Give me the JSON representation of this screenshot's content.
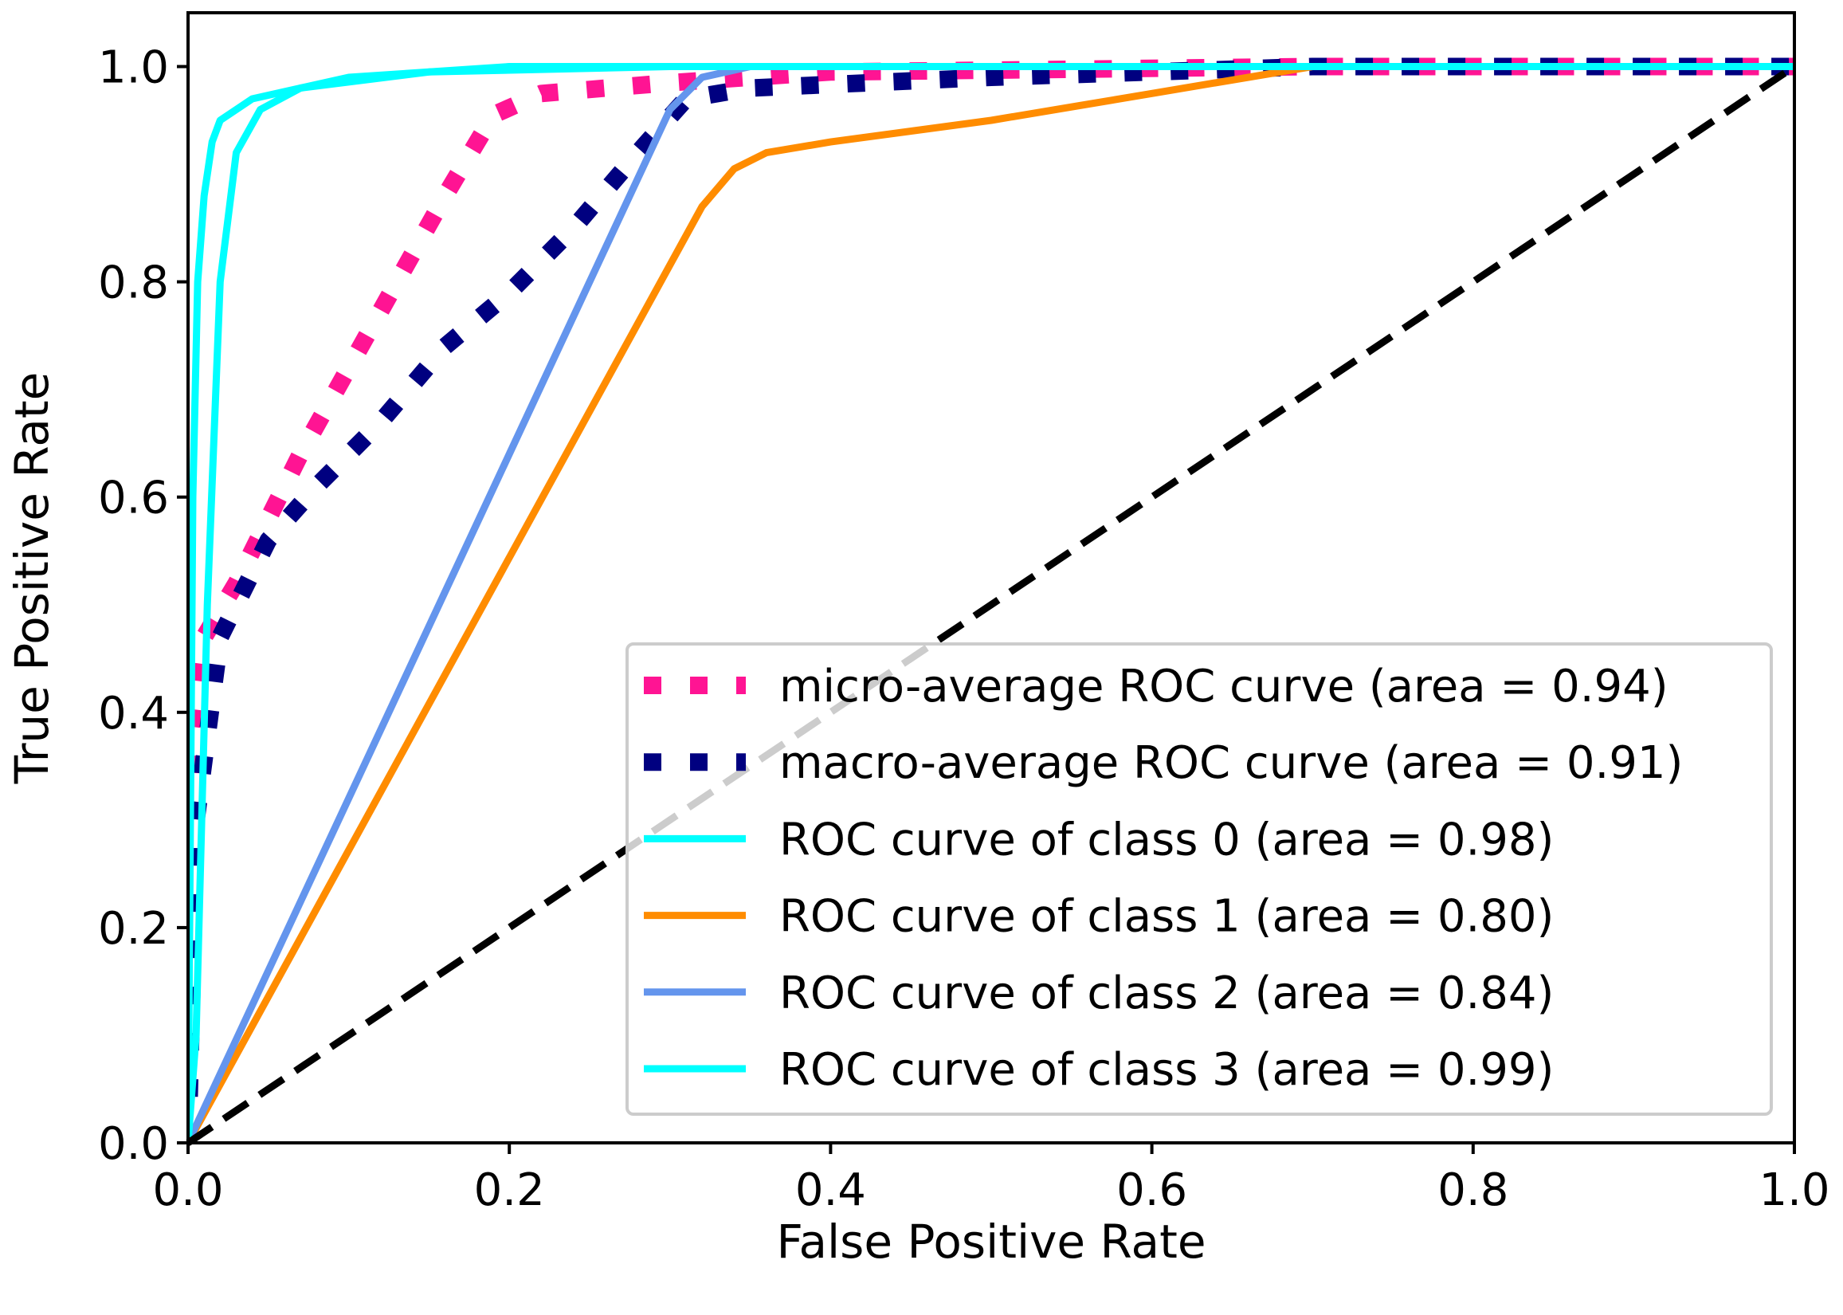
{
  "chart_data": {
    "type": "line",
    "title": "",
    "xlabel": "False Positive Rate",
    "ylabel": "True Positive Rate",
    "xlim": [
      0.0,
      1.0
    ],
    "ylim": [
      0.0,
      1.05
    ],
    "xticks": [
      "0.0",
      "0.2",
      "0.4",
      "0.6",
      "0.8",
      "1.0"
    ],
    "yticks": [
      "0.0",
      "0.2",
      "0.4",
      "0.6",
      "0.8",
      "1.0"
    ],
    "grid": false,
    "legend_position": "lower-right",
    "series": [
      {
        "name": "micro-average ROC curve (area = 0.94)",
        "color": "#ff1493",
        "style": "dotted",
        "x": [
          0,
          0.002,
          0.01,
          0.03,
          0.05,
          0.07,
          0.1,
          0.13,
          0.16,
          0.19,
          0.22,
          0.3,
          0.4,
          0.7,
          1.0
        ],
        "y": [
          0,
          0.37,
          0.47,
          0.52,
          0.58,
          0.64,
          0.72,
          0.8,
          0.88,
          0.955,
          0.975,
          0.985,
          0.995,
          1.0,
          1.0
        ]
      },
      {
        "name": "macro-average ROC curve (area = 0.91)",
        "color": "#000080",
        "style": "dotted",
        "x": [
          0,
          0.005,
          0.02,
          0.05,
          0.08,
          0.12,
          0.16,
          0.2,
          0.24,
          0.28,
          0.31,
          0.35,
          0.5,
          0.7,
          1.0
        ],
        "y": [
          0,
          0.3,
          0.47,
          0.56,
          0.61,
          0.67,
          0.74,
          0.79,
          0.85,
          0.92,
          0.97,
          0.98,
          0.99,
          1.0,
          1.0
        ]
      },
      {
        "name": "ROC curve of class 0 (area = 0.98)",
        "color": "#00ffff",
        "style": "solid",
        "x": [
          0,
          0.003,
          0.006,
          0.01,
          0.015,
          0.02,
          0.04,
          0.1,
          0.2,
          1.0
        ],
        "y": [
          0,
          0.6,
          0.8,
          0.88,
          0.93,
          0.95,
          0.97,
          0.99,
          1.0,
          1.0
        ]
      },
      {
        "name": "ROC curve of class 1 (area = 0.80)",
        "color": "#ff8c00",
        "style": "solid",
        "x": [
          0,
          0.32,
          0.34,
          0.36,
          0.4,
          0.5,
          0.6,
          0.7,
          1.0
        ],
        "y": [
          0,
          0.87,
          0.905,
          0.92,
          0.93,
          0.95,
          0.975,
          1.0,
          1.0
        ]
      },
      {
        "name": "ROC curve of class 2 (area = 0.84)",
        "color": "#6495ed",
        "style": "solid",
        "x": [
          0,
          0.3,
          0.32,
          0.35,
          1.0
        ],
        "y": [
          0,
          0.96,
          0.99,
          1.0,
          1.0
        ]
      },
      {
        "name": "ROC curve of class 3 (area = 0.99)",
        "color": "#00ffff",
        "style": "solid",
        "x": [
          0,
          0.005,
          0.012,
          0.02,
          0.03,
          0.045,
          0.07,
          0.15,
          0.3,
          1.0
        ],
        "y": [
          0,
          0.1,
          0.5,
          0.8,
          0.92,
          0.96,
          0.98,
          0.995,
          1.0,
          1.0
        ]
      }
    ],
    "reference_line": {
      "x": [
        0,
        1
      ],
      "y": [
        0,
        1
      ],
      "color": "#000000",
      "style": "dashed"
    }
  }
}
